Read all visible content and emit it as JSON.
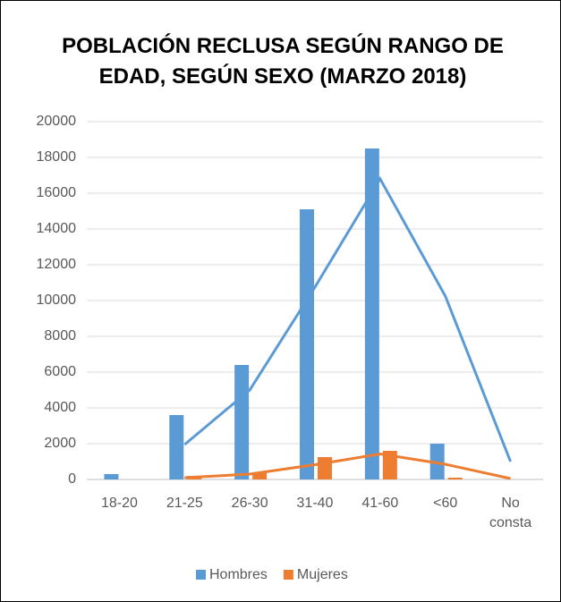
{
  "chart_data": {
    "type": "bar",
    "title": "POBLACIÓN RECLUSA SEGÚN RANGO DE EDAD, SEGÚN SEXO (MARZO 2018)",
    "categories": [
      "18-20",
      "21-25",
      "26-30",
      "31-40",
      "41-60",
      "<60",
      "No consta"
    ],
    "series": [
      {
        "name": "Hombres",
        "color": "#5b9bd5",
        "values": [
          300,
          3600,
          6400,
          15100,
          18500,
          2000,
          0
        ],
        "moving_average": [
          null,
          1950,
          5000,
          10750,
          16800,
          10250,
          1000
        ]
      },
      {
        "name": "Mujeres",
        "color": "#ed7d31",
        "values": [
          0,
          200,
          400,
          1250,
          1600,
          100,
          0
        ],
        "moving_average": [
          null,
          100,
          300,
          825,
          1425,
          850,
          50
        ]
      }
    ],
    "ylim": [
      0,
      20000
    ],
    "yticks": [
      0,
      2000,
      4000,
      6000,
      8000,
      10000,
      12000,
      14000,
      16000,
      18000,
      20000
    ],
    "grid": true,
    "legend": "bottom"
  }
}
